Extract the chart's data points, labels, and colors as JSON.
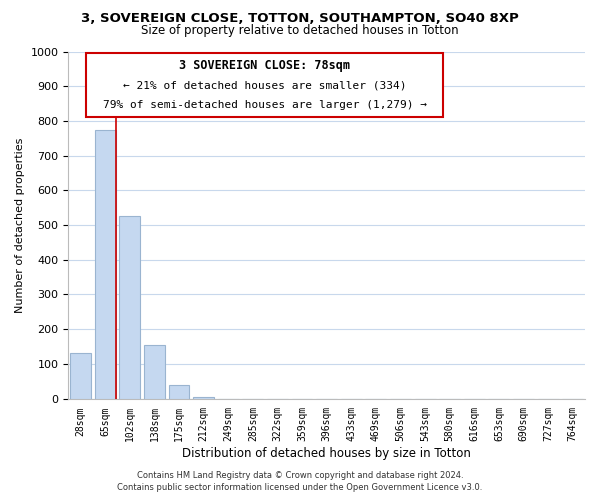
{
  "title": "3, SOVEREIGN CLOSE, TOTTON, SOUTHAMPTON, SO40 8XP",
  "subtitle": "Size of property relative to detached houses in Totton",
  "xlabel": "Distribution of detached houses by size in Totton",
  "ylabel": "Number of detached properties",
  "bar_labels": [
    "28sqm",
    "65sqm",
    "102sqm",
    "138sqm",
    "175sqm",
    "212sqm",
    "249sqm",
    "285sqm",
    "322sqm",
    "359sqm",
    "396sqm",
    "433sqm",
    "469sqm",
    "506sqm",
    "543sqm",
    "580sqm",
    "616sqm",
    "653sqm",
    "690sqm",
    "727sqm",
    "764sqm"
  ],
  "bar_values": [
    130,
    775,
    525,
    155,
    40,
    5,
    0,
    0,
    0,
    0,
    0,
    0,
    0,
    0,
    0,
    0,
    0,
    0,
    0,
    0,
    0
  ],
  "bar_color": "#c5d8f0",
  "bar_edge_color": "#9ab4d0",
  "vline_color": "#cc0000",
  "ylim": [
    0,
    1000
  ],
  "yticks": [
    0,
    100,
    200,
    300,
    400,
    500,
    600,
    700,
    800,
    900,
    1000
  ],
  "annotation_title": "3 SOVEREIGN CLOSE: 78sqm",
  "annotation_line1": "← 21% of detached houses are smaller (334)",
  "annotation_line2": "79% of semi-detached houses are larger (1,279) →",
  "annotation_box_color": "#ffffff",
  "annotation_box_edge": "#cc0000",
  "footer_line1": "Contains HM Land Registry data © Crown copyright and database right 2024.",
  "footer_line2": "Contains public sector information licensed under the Open Government Licence v3.0.",
  "background_color": "#ffffff",
  "grid_color": "#c8d8ec"
}
